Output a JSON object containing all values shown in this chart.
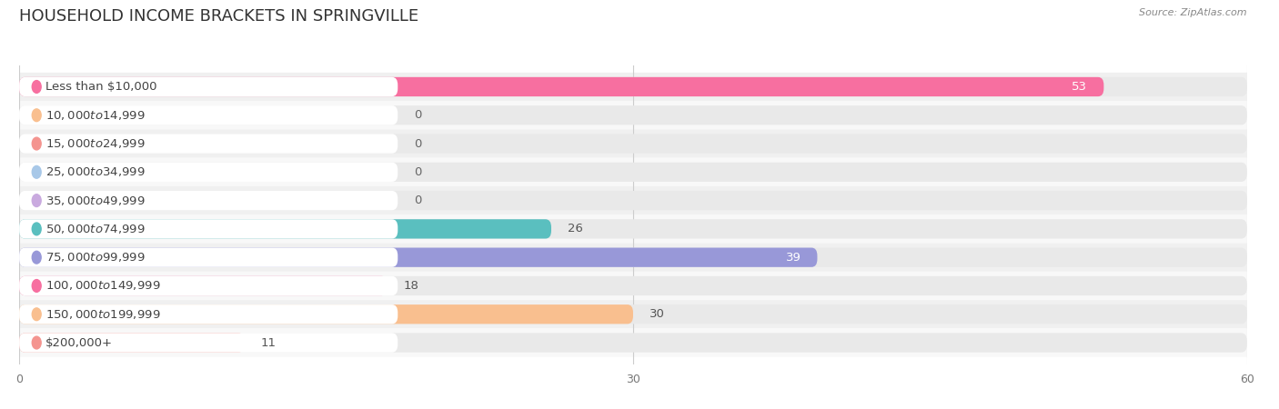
{
  "title": "HOUSEHOLD INCOME BRACKETS IN SPRINGVILLE",
  "source": "Source: ZipAtlas.com",
  "categories": [
    "Less than $10,000",
    "$10,000 to $14,999",
    "$15,000 to $24,999",
    "$25,000 to $34,999",
    "$35,000 to $49,999",
    "$50,000 to $74,999",
    "$75,000 to $99,999",
    "$100,000 to $149,999",
    "$150,000 to $199,999",
    "$200,000+"
  ],
  "values": [
    53,
    0,
    0,
    0,
    0,
    26,
    39,
    18,
    30,
    11
  ],
  "bar_colors": [
    "#F76FA0",
    "#F9BF8F",
    "#F4948F",
    "#A8C8E8",
    "#C9AADF",
    "#5ABFBF",
    "#9898D8",
    "#F76FA0",
    "#F9BF8F",
    "#F4948F"
  ],
  "label_bg_colors": [
    "#F76FA0",
    "#F9BF8F",
    "#F4948F",
    "#A8C8E8",
    "#C9AADF",
    "#5ABFBF",
    "#9898D8",
    "#F76FA0",
    "#F9BF8F",
    "#F4948F"
  ],
  "xlim": [
    0,
    60
  ],
  "xticks": [
    0,
    30,
    60
  ],
  "background_color": "#f7f7f7",
  "bar_bg_color": "#e9e9e9",
  "row_bg_colors": [
    "#f0f0f0",
    "#f8f8f8"
  ],
  "title_fontsize": 13,
  "label_fontsize": 9.5,
  "value_fontsize": 9.5
}
